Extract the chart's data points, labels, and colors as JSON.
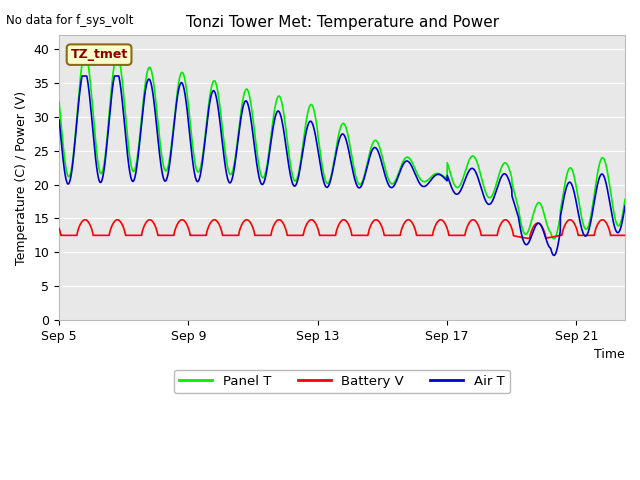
{
  "title": "Tonzi Tower Met: Temperature and Power",
  "no_data_text": "No data for f_sys_volt",
  "xlabel": "Time",
  "ylabel": "Temperature (C) / Power (V)",
  "ylim": [
    0,
    42
  ],
  "yticks": [
    0,
    5,
    10,
    15,
    20,
    25,
    30,
    35,
    40
  ],
  "xtick_labels": [
    "Sep 5",
    "Sep 9",
    "Sep 13",
    "Sep 17",
    "Sep 21"
  ],
  "xtick_positions": [
    0,
    4,
    8,
    12,
    16
  ],
  "annotation_text": "TZ_tmet",
  "fig_facecolor": "#ffffff",
  "plot_bg_color": "#e8e8e8",
  "panel_t_color": "#00ee00",
  "battery_v_color": "#ff0000",
  "air_t_color": "#0000cc",
  "legend_labels": [
    "Panel T",
    "Battery V",
    "Air T"
  ],
  "linewidth": 1.2,
  "grid_color": "#ffffff",
  "xlim": [
    0,
    17.5
  ]
}
